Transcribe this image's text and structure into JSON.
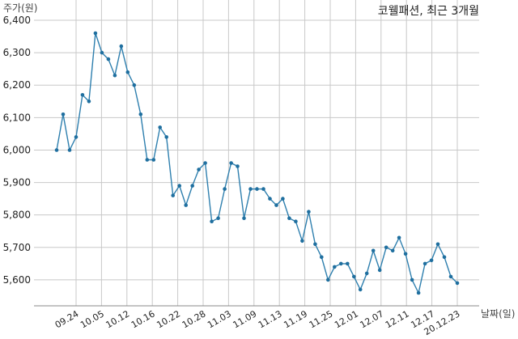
{
  "chart_data": {
    "type": "line",
    "title": "코웰패션, 최근 3개월",
    "ylabel": "주가(원)",
    "xlabel": "날짜(일)",
    "ylim": [
      5520,
      6400
    ],
    "y_ticks": [
      5600,
      5700,
      5800,
      5900,
      6000,
      6100,
      6200,
      6300,
      6400
    ],
    "y_tick_labels": [
      "5,600",
      "5,700",
      "5,800",
      "5,900",
      "6,000",
      "6,100",
      "6,200",
      "6,300",
      "6,400"
    ],
    "grid": true,
    "x_tick_labels": [
      "09.24",
      "10.05",
      "10.12",
      "10.16",
      "10.22",
      "10.28",
      "11.03",
      "11.09",
      "11.13",
      "11.19",
      "11.25",
      "12.01",
      "12.07",
      "12.11",
      "12.17",
      "20.12.23"
    ],
    "series": [
      {
        "values": [
          6000,
          6110,
          6000,
          6040,
          6170,
          6150,
          6360,
          6300,
          6280,
          6230,
          6320,
          6240,
          6200,
          6110,
          5970,
          5970,
          6070,
          6040,
          5860,
          5890,
          5830,
          5890,
          5940,
          5960,
          5780,
          5790,
          5880,
          5960,
          5950,
          5790,
          5880,
          5880,
          5880,
          5850,
          5830,
          5850,
          5790,
          5780,
          5720,
          5810,
          5710,
          5670,
          5600,
          5640,
          5650,
          5650,
          5610,
          5570,
          5620,
          5690,
          5630,
          5700,
          5690,
          5730,
          5680,
          5600,
          5560,
          5650,
          5660,
          5710,
          5670,
          5610,
          5590
        ]
      }
    ]
  }
}
